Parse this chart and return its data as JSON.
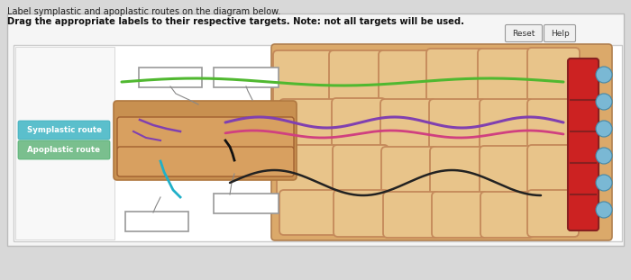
{
  "title_line1": "Label symplastic and apoplastic routes on the diagram below.",
  "title_line2": "Drag the appropriate labels to their respective targets. Note: not all targets will be used.",
  "bg_color": "#d8d8d8",
  "panel_bg": "#f0f0f0",
  "reset_label": "Reset",
  "help_label": "Help",
  "symplastic_label": "Symplastic route",
  "apoplastic_label": "Apoplastic route",
  "symplastic_btn_color": "#5bbfcc",
  "apoplastic_btn_color": "#7abf8e",
  "cell_fill": "#dba96a",
  "cell_edge": "#c4895a",
  "cell_inner": "#e8c48a"
}
